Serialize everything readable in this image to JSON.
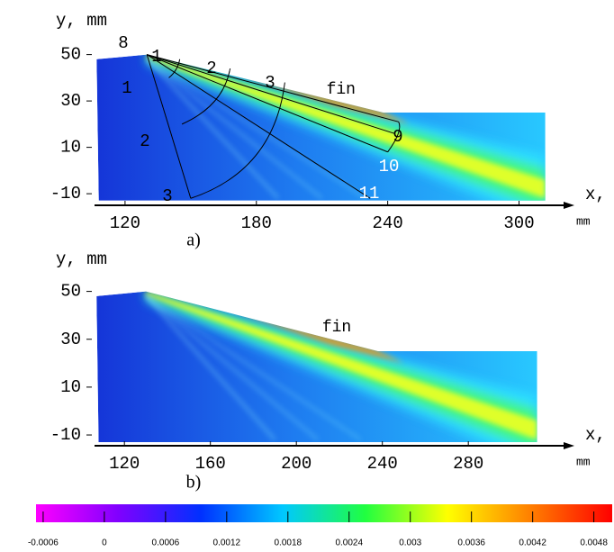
{
  "chart_data": [
    {
      "type": "field",
      "panel_label": "a)",
      "y_label": "y, mm",
      "x_label": "x,",
      "x_unit": "mm",
      "annotation": "fin",
      "xlim": [
        104,
        322
      ],
      "ylim": [
        -15,
        58
      ],
      "xticks": [
        120,
        180,
        240,
        300
      ],
      "yticks": [
        50,
        30,
        10,
        -10
      ],
      "point_labels": [
        "8",
        "1",
        "2",
        "3",
        "1",
        "2",
        "3",
        "9",
        "10",
        "11"
      ]
    },
    {
      "type": "field",
      "panel_label": "b)",
      "y_label": "y, mm",
      "x_label": "x,",
      "x_unit": "mm",
      "annotation": "fin",
      "xlim": [
        104,
        326
      ],
      "ylim": [
        -14.5,
        57
      ],
      "xticks": [
        120,
        160,
        200,
        240,
        280
      ],
      "yticks": [
        50,
        30,
        10,
        -10
      ]
    }
  ],
  "colorbar": {
    "type": "colorbar",
    "clim": [
      -0.00067,
      0.00498
    ],
    "ticks": [
      -0.0006,
      0,
      0.0006,
      0.0012,
      0.0018,
      0.0024,
      0.003,
      0.0036,
      0.0042,
      0.0048
    ],
    "colors": [
      "#ff00ff",
      "#8000ff",
      "#0030ff",
      "#00c8ff",
      "#20ff40",
      "#ffff00",
      "#ff8000",
      "#ff0000"
    ]
  }
}
